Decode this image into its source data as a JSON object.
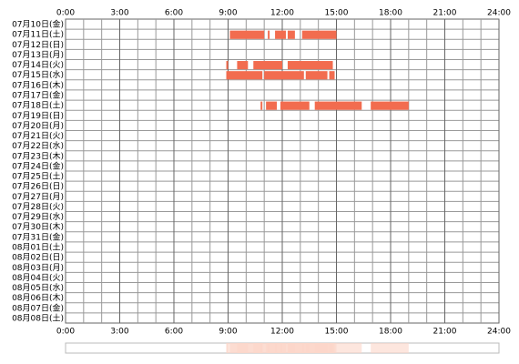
{
  "chart_data": {
    "type": "timeline",
    "categories": [
      "07月10日(金)",
      "07月11日(土)",
      "07月12日(日)",
      "07月13日(月)",
      "07月14日(火)",
      "07月15日(水)",
      "07月16日(木)",
      "07月17日(金)",
      "07月18日(土)",
      "07月19日(日)",
      "07月20日(月)",
      "07月21日(火)",
      "07月22日(水)",
      "07月23日(木)",
      "07月24日(金)",
      "07月25日(土)",
      "07月26日(日)",
      "07月27日(月)",
      "07月28日(火)",
      "07月29日(水)",
      "07月30日(木)",
      "07月31日(金)",
      "08月01日(土)",
      "08月02日(日)",
      "08月03日(月)",
      "08月04日(火)",
      "08月05日(水)",
      "08月06日(木)",
      "08月07日(金)",
      "08月08日(土)"
    ],
    "values": [
      [],
      [
        [
          9.1,
          11.0
        ],
        [
          11.2,
          11.3
        ],
        [
          11.6,
          12.2
        ],
        [
          12.3,
          12.7
        ],
        [
          13.1,
          15.0
        ]
      ],
      [],
      [],
      [
        [
          8.9,
          9.0
        ],
        [
          9.5,
          10.1
        ],
        [
          10.4,
          12.0
        ],
        [
          12.3,
          14.8
        ]
      ],
      [
        [
          8.9,
          10.9
        ],
        [
          11.0,
          13.2
        ],
        [
          13.3,
          14.5
        ],
        [
          14.6,
          14.9
        ]
      ],
      [],
      [],
      [
        [
          10.8,
          10.9
        ],
        [
          11.1,
          11.7
        ],
        [
          11.9,
          13.5
        ],
        [
          13.8,
          16.4
        ],
        [
          16.9,
          19.0
        ]
      ],
      [],
      [],
      [],
      [],
      [],
      [],
      [],
      [],
      [],
      [],
      [],
      [],
      [],
      [],
      [],
      [],
      [],
      [],
      [],
      [],
      []
    ],
    "color": "#f26c4f",
    "summary_color": "#fcd6c8",
    "xlim": [
      0,
      24
    ],
    "xticks": [
      {
        "value": 0,
        "label": "0:00"
      },
      {
        "value": 3,
        "label": "3:00"
      },
      {
        "value": 6,
        "label": "6:00"
      },
      {
        "value": 9,
        "label": "9:00"
      },
      {
        "value": 12,
        "label": "12:00"
      },
      {
        "value": 15,
        "label": "15:00"
      },
      {
        "value": 18,
        "label": "18:00"
      },
      {
        "value": 21,
        "label": "21:00"
      },
      {
        "value": 24,
        "label": "24:00"
      }
    ],
    "grid": true
  }
}
